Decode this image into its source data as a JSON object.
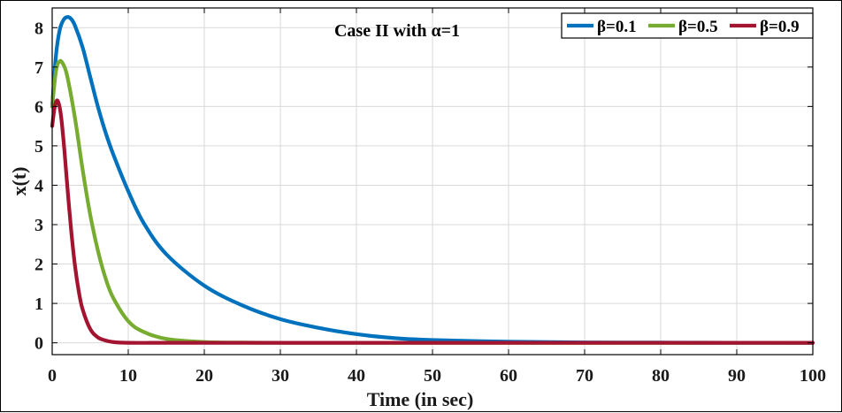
{
  "chart_data": {
    "type": "line",
    "title": "Case II with α=1",
    "xlabel": "Time (in sec)",
    "ylabel": "x(t)",
    "xlim": [
      0,
      100
    ],
    "ylim": [
      -0.3,
      8.5
    ],
    "xticks": [
      0,
      10,
      20,
      30,
      40,
      50,
      60,
      70,
      80,
      90,
      100
    ],
    "yticks": [
      0,
      1,
      2,
      3,
      4,
      5,
      6,
      7,
      8
    ],
    "grid": true,
    "legend_position": "top-right",
    "series": [
      {
        "name": "β=0.1",
        "color": "#0072BD",
        "x": [
          0,
          0.5,
          1,
          1.5,
          2,
          2.5,
          3,
          4,
          5,
          6,
          7,
          8,
          10,
          12,
          15,
          20,
          25,
          30,
          35,
          40,
          45,
          50,
          60,
          70,
          80,
          90,
          100
        ],
        "y": [
          6.0,
          7.3,
          7.95,
          8.2,
          8.27,
          8.22,
          8.05,
          7.5,
          6.75,
          6.0,
          5.35,
          4.8,
          3.85,
          3.05,
          2.25,
          1.45,
          0.95,
          0.6,
          0.38,
          0.22,
          0.12,
          0.07,
          0.03,
          0.01,
          0.005,
          0.002,
          0.0
        ]
      },
      {
        "name": "β=0.5",
        "color": "#77AC30",
        "x": [
          0,
          0.5,
          1,
          1.5,
          2,
          3,
          4,
          5,
          6,
          7,
          8,
          10,
          12,
          15,
          20,
          25,
          30,
          40,
          50,
          100
        ],
        "y": [
          6.0,
          6.9,
          7.15,
          7.05,
          6.75,
          5.7,
          4.4,
          3.25,
          2.35,
          1.65,
          1.15,
          0.55,
          0.28,
          0.1,
          0.02,
          0.005,
          0.0,
          0.0,
          0.0,
          0.0
        ]
      },
      {
        "name": "β=0.9",
        "color": "#A2142F",
        "x": [
          0,
          0.3,
          0.6,
          0.9,
          1.2,
          1.6,
          2,
          2.5,
          3,
          3.5,
          4,
          5,
          6,
          7,
          8,
          10,
          15,
          20,
          100
        ],
        "y": [
          5.5,
          5.95,
          6.15,
          6.05,
          5.7,
          4.9,
          3.95,
          2.85,
          1.95,
          1.3,
          0.85,
          0.35,
          0.14,
          0.06,
          0.02,
          0.0,
          0.0,
          0.0,
          0.0
        ]
      }
    ]
  }
}
